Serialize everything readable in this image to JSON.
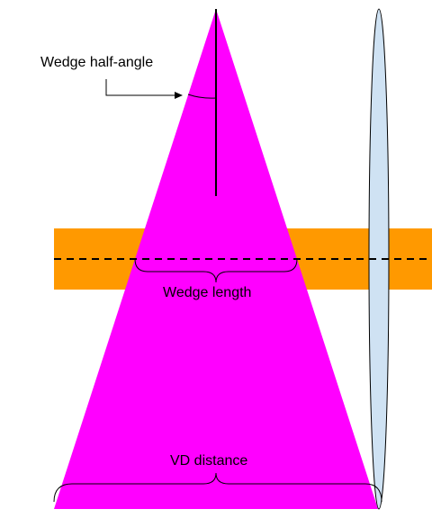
{
  "labels": {
    "wedge_half_angle": "Wedge half-angle",
    "wedge_length": "Wedge length",
    "vd_distance": "VD distance"
  },
  "colors": {
    "wedge_fill": "#ff00ff",
    "band_fill": "#ff9900",
    "lens_fill": "#cfe2f3",
    "lens_stroke": "#000000",
    "line": "#000000",
    "background": "#ffffff"
  }
}
